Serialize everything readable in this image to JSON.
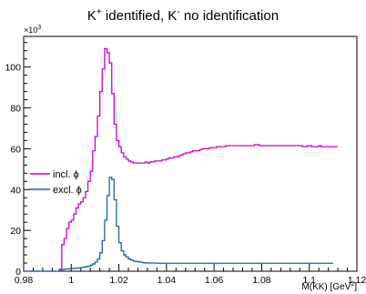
{
  "chart_data": {
    "type": "line",
    "style": "step-histogram",
    "title_parts": [
      "K",
      "+",
      " identified, K",
      "-",
      " no identification"
    ],
    "xlabel": "M(KK) [GeV",
    "xlabel_sup": "2",
    "xlabel_end": "]",
    "ylabel": "",
    "y_exponent_base": "×10",
    "y_exponent": "3",
    "xlim": [
      0.98,
      1.12
    ],
    "ylim": [
      0,
      115
    ],
    "x_ticks": [
      0.98,
      1.0,
      1.02,
      1.04,
      1.06,
      1.08,
      1.1,
      1.12
    ],
    "x_tick_labels": [
      "0.98",
      "1",
      "1.02",
      "1.04",
      "1.06",
      "1.08",
      "1.1",
      "1.12"
    ],
    "y_ticks": [
      0,
      20,
      40,
      60,
      80,
      100
    ],
    "y_tick_labels": [
      "0",
      "20",
      "40",
      "60",
      "80",
      "100"
    ],
    "grid": false,
    "legend_position": "middle-left",
    "bin_edges_start": 0.98,
    "bin_width": 0.001,
    "series": [
      {
        "name": "incl. ϕ",
        "color": "#cc00cc",
        "values": [
          0,
          0,
          0,
          0,
          0,
          0,
          0,
          0,
          0,
          0,
          0,
          0,
          0,
          0,
          0,
          1,
          13,
          16,
          21,
          24,
          25,
          28,
          31,
          33,
          34,
          36,
          39,
          44,
          49,
          59,
          66,
          76,
          88,
          99,
          109,
          107,
          102,
          87,
          72,
          64,
          61,
          58,
          56,
          55,
          54,
          53.5,
          53,
          53,
          53,
          53,
          53,
          53.5,
          53,
          53.5,
          53.5,
          54,
          54,
          54,
          54.5,
          54.5,
          55,
          55.5,
          55.5,
          56,
          56,
          56.5,
          57,
          57.5,
          58,
          58,
          58.5,
          59,
          59,
          59,
          59.5,
          60,
          60,
          60,
          60.5,
          60.5,
          60.5,
          61,
          61,
          61,
          61,
          61.5,
          61.5,
          61.5,
          61.5,
          61.5,
          61.5,
          61.5,
          61.5,
          61.5,
          61.5,
          61.5,
          61.5,
          62,
          62,
          61.5,
          61.5,
          61.5,
          61.5,
          61.5,
          61.5,
          61.5,
          61.5,
          61.5,
          61.5,
          61.5,
          61.5,
          61.5,
          61.5,
          61.5,
          61.5,
          61.5,
          61.5,
          61,
          61,
          61.5,
          61.5,
          61,
          61,
          61,
          61.5,
          61,
          61,
          61,
          61,
          61,
          61,
          61
        ]
      },
      {
        "name": "excl. ϕ",
        "color": "#1f5fb0",
        "values": [
          0,
          0,
          0,
          0,
          0,
          0,
          0,
          0,
          0,
          0,
          0,
          0,
          0,
          0,
          0,
          0.3,
          0.8,
          1.0,
          1.1,
          1.2,
          1.3,
          1.4,
          1.5,
          1.6,
          1.8,
          2.0,
          2.2,
          2.5,
          3.0,
          3.6,
          4.5,
          6,
          9,
          15,
          25,
          37,
          46,
          45,
          35,
          22,
          14,
          10,
          8,
          7,
          6,
          5.5,
          5,
          4.8,
          4.6,
          4.4,
          4.2,
          4.1,
          4,
          4,
          4,
          4,
          3.9,
          3.9,
          3.9,
          3.9,
          3.9,
          3.9,
          3.9,
          3.9,
          3.9,
          3.9,
          3.9,
          3.9,
          3.9,
          3.9,
          3.9,
          3.9,
          3.9,
          3.9,
          3.9,
          3.9,
          3.9,
          3.9,
          3.9,
          3.9,
          3.9,
          3.9,
          3.9,
          3.9,
          3.9,
          3.9,
          3.9,
          3.9,
          3.9,
          3.9,
          3.9,
          3.9,
          3.9,
          3.9,
          3.9,
          3.9,
          3.9,
          3.9,
          3.9,
          3.9,
          3.9,
          3.9,
          3.9,
          3.9,
          3.9,
          3.9,
          3.9,
          3.9,
          3.9,
          3.9,
          3.9,
          3.9,
          3.9,
          3.9,
          3.9,
          3.9,
          3.9,
          3.9,
          3.9,
          3.9,
          3.9,
          3.9,
          3.9,
          3.9,
          3.9,
          3.9,
          3.9,
          3.9,
          3.9,
          3.9
        ]
      }
    ]
  }
}
